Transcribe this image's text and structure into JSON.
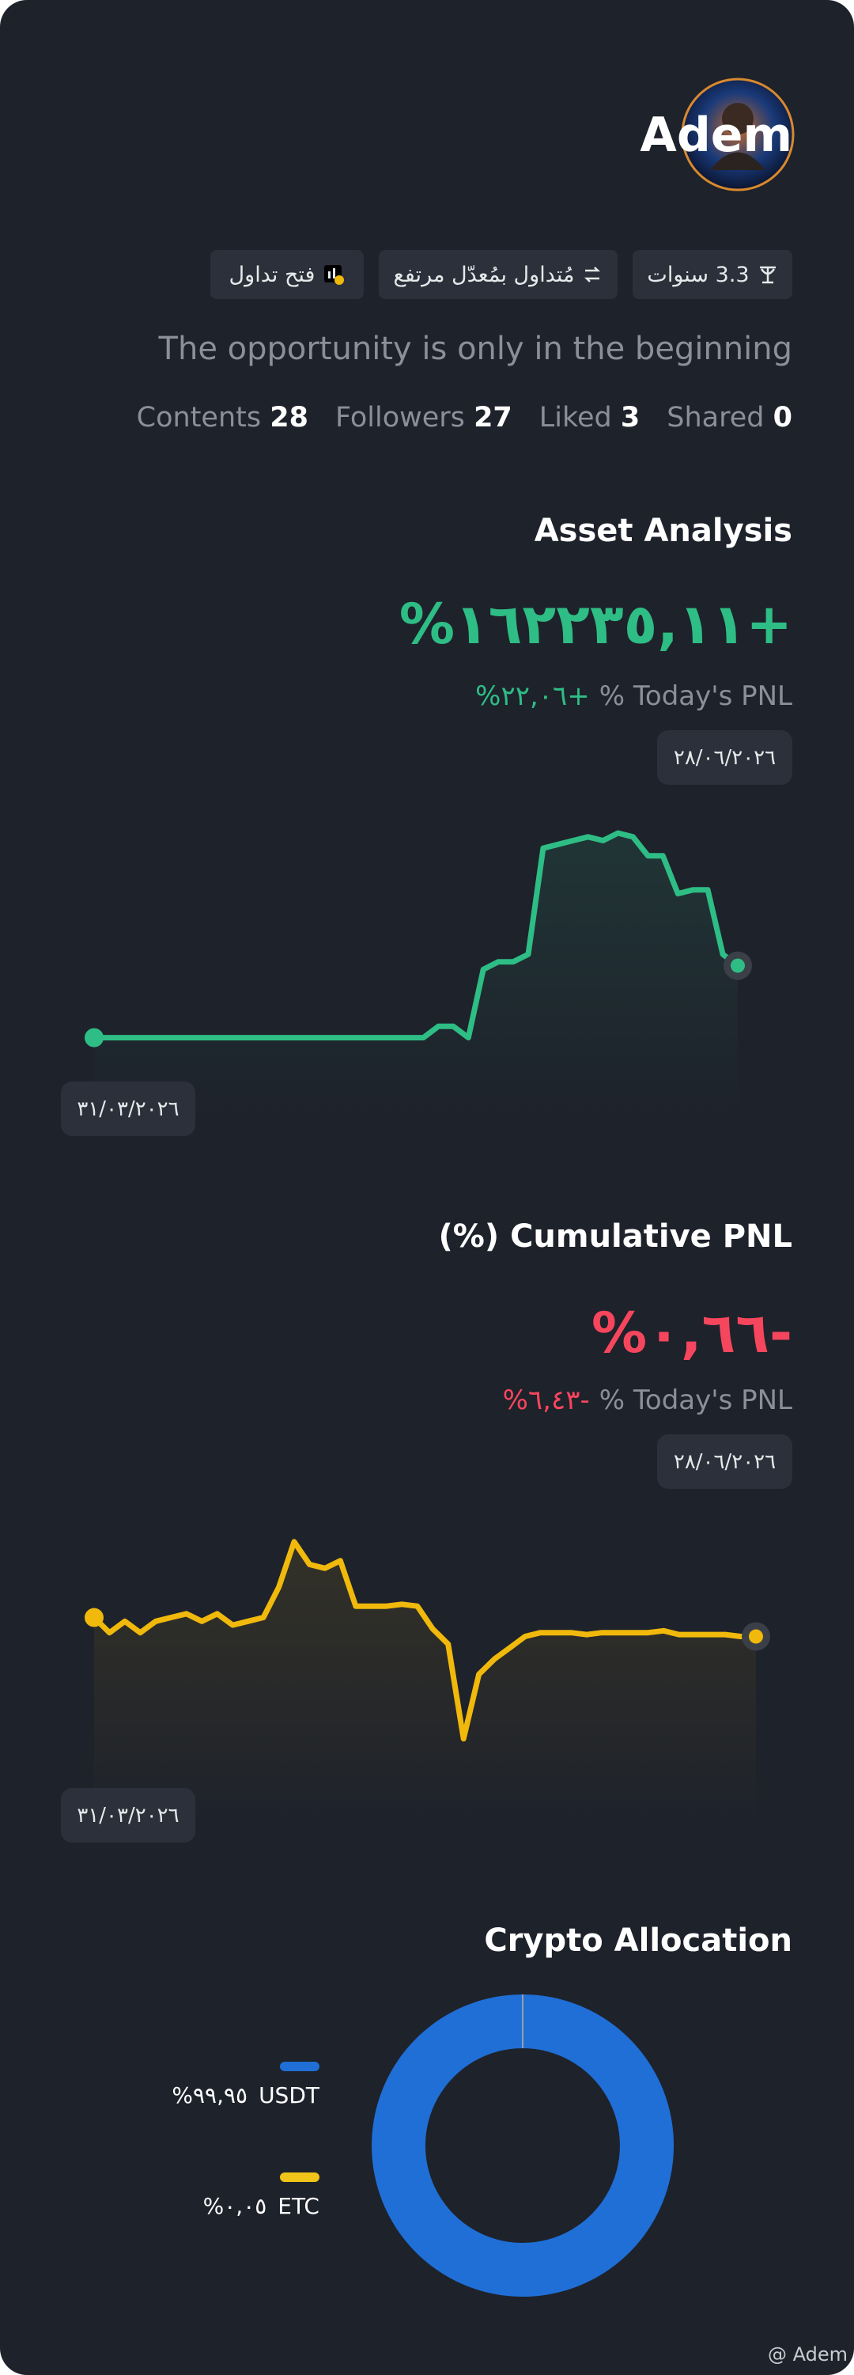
{
  "profile": {
    "name": "Adem",
    "tags": [
      "3.3 سنوات",
      "مُتداول بمُعدّل مرتفع",
      "فتح تداول"
    ],
    "bio": "The opportunity is only in the beginning",
    "stats": [
      {
        "label": "Contents",
        "value": 28
      },
      {
        "label": "Followers",
        "value": 27
      },
      {
        "label": "Liked",
        "value": 3
      },
      {
        "label": "Shared",
        "value": 0
      }
    ]
  },
  "asset_analysis": {
    "title": "Asset Analysis",
    "total": "%١٦٢٢٣٥,١١+",
    "today_value": "%٢٢,٠٦+",
    "today_label": "% Today's PNL",
    "start_date": "٣١/٠٣/٢٠٢٦",
    "end_date": "٢٨/٠٦/٢٠٢٦",
    "color": "#2ebd85",
    "ylim": [
      0,
      100
    ],
    "values": [
      22,
      22,
      22,
      22,
      22,
      22,
      22,
      22,
      22,
      22,
      22,
      22,
      22,
      22,
      22,
      22,
      22,
      22,
      22,
      22,
      22,
      22,
      22,
      25,
      25,
      22,
      40,
      42,
      42,
      44,
      72,
      73,
      74,
      75,
      74,
      76,
      75,
      70,
      70,
      60,
      61,
      61,
      44,
      41
    ]
  },
  "cumulative_pnl": {
    "title": "(%) Cumulative PNL",
    "total": "%٠,٦٦-",
    "today_value": "%٦,٤٣-",
    "today_label": "% Today's PNL",
    "start_date": "٣١/٠٣/٢٠٢٦",
    "end_date": "٢٨/٠٦/٢٠٢٦",
    "color": "#f0b90b",
    "ylim": [
      0,
      100
    ],
    "values": [
      55,
      51,
      54,
      51,
      54,
      55,
      56,
      54,
      56,
      53,
      54,
      55,
      63,
      75,
      69,
      68,
      70,
      58,
      58,
      58,
      58.5,
      58,
      52,
      48,
      23,
      40,
      44,
      47,
      50,
      51,
      51,
      51,
      50.5,
      51,
      51,
      51,
      51,
      51.5,
      50.5,
      50.5,
      50.5,
      50.5,
      50,
      50
    ]
  },
  "crypto_allocation": {
    "title": "Crypto Allocation",
    "items": [
      {
        "name": "USDT",
        "value": 99.95,
        "value_label": "%٩٩,٩٥",
        "color": "#1f6fd6"
      },
      {
        "name": "ETC",
        "value": 0.05,
        "value_label": "%٠,٠٥",
        "color": "#f0c419"
      }
    ]
  },
  "watermark": "@ Adem"
}
